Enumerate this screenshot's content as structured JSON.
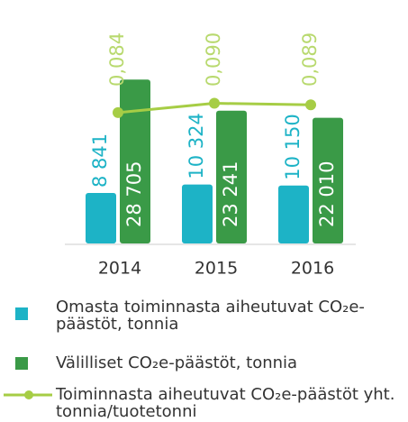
{
  "chart_data": {
    "type": "bar",
    "categories": [
      "2014",
      "2015",
      "2016"
    ],
    "series": [
      {
        "name": "Omasta toiminnasta aiheutuvat CO₂e-päästöt, tonnia",
        "color": "#1db3c6",
        "values": [
          8841,
          10324,
          10150
        ],
        "value_labels": [
          "8 841",
          "10 324",
          "10 150"
        ]
      },
      {
        "name": "Välilliset CO₂e-päästöt, tonnia",
        "color": "#3a9a47",
        "values": [
          28705,
          23241,
          22010
        ],
        "value_labels": [
          "28 705",
          "23 241",
          "22 010"
        ]
      },
      {
        "name": "Toiminnasta aiheutuvat CO₂e-päästöt yht. tonnia/tuotetonni",
        "type": "line",
        "axis": "y2",
        "color": "#a6cd45",
        "values": [
          0.084,
          0.09,
          0.089
        ],
        "value_labels": [
          "0,084",
          "0,090",
          "0,089"
        ]
      }
    ],
    "ylim": [
      0,
      30000
    ],
    "y2lim": [
      0,
      0.11
    ]
  }
}
